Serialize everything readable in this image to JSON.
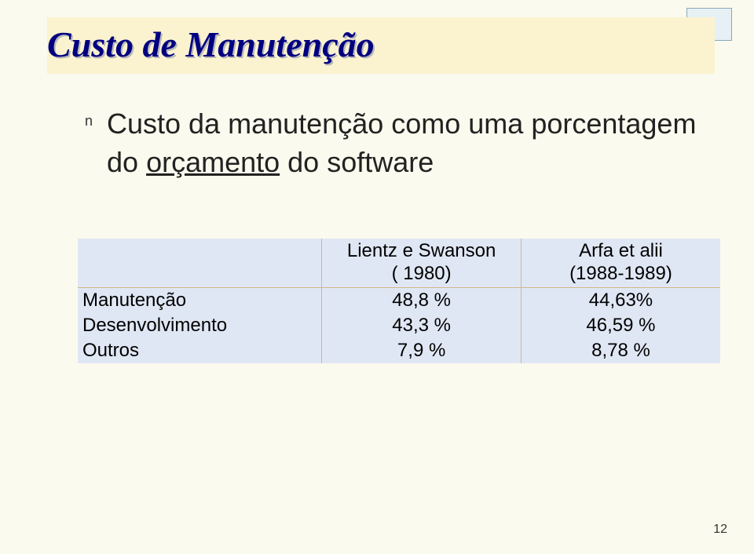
{
  "slide": {
    "title": "Custo de Manutenção",
    "bullet_marker": "n",
    "bullet_text_pre": "Custo da manutenção como uma porcentagem do ",
    "bullet_underlined": "orçamento",
    "bullet_text_post": " do software",
    "page_number": "12"
  },
  "table": {
    "header_col0": "",
    "header_col1_line1": "Lientz e Swanson",
    "header_col1_line2": "( 1980)",
    "header_col2_line1": "Arfa et alii",
    "header_col2_line2": "(1988-1989)",
    "rows": [
      {
        "label": "Manutenção",
        "c1": "48,8 %",
        "c2": "44,63%"
      },
      {
        "label": "Desenvolvimento",
        "c1": "43,3 %",
        "c2": "46,59 %"
      },
      {
        "label": "Outros",
        "c1": "7,9 %",
        "c2": "8,78 %"
      }
    ]
  },
  "style": {
    "background_color": "#fbfaee",
    "title_band_color": "#fbf3cf",
    "title_color": "#000080",
    "table_bg_color": "#e0e7f4",
    "table_border_color": "#cfb98c",
    "title_fontsize_pt": 34,
    "body_fontsize_pt": 27,
    "table_fontsize_pt": 18
  }
}
